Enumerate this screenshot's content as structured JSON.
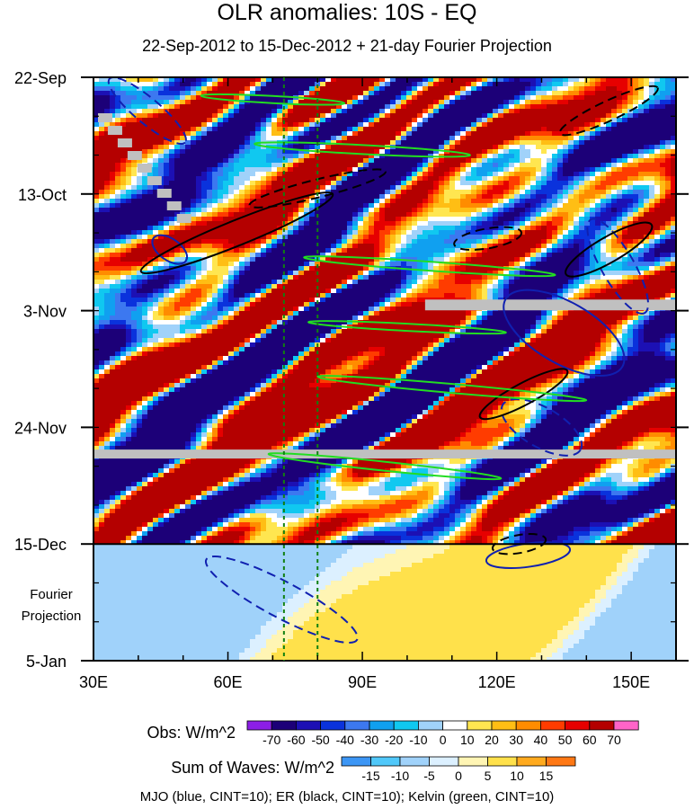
{
  "chart_data": {
    "type": "heatmap",
    "title": "OLR anomalies: 10S - EQ",
    "subtitle": "22-Sep-2012 to 15-Dec-2012 + 21-day Fourier Projection",
    "x_ticks": [
      {
        "value": 30,
        "label": "30E"
      },
      {
        "value": 60,
        "label": "60E"
      },
      {
        "value": 90,
        "label": "90E"
      },
      {
        "value": 120,
        "label": "120E"
      },
      {
        "value": 150,
        "label": "150E"
      }
    ],
    "xlim": [
      30,
      160
    ],
    "y_ticks": [
      {
        "value": "2012-09-22",
        "label": "22-Sep"
      },
      {
        "value": "2012-10-13",
        "label": "13-Oct"
      },
      {
        "value": "2012-11-03",
        "label": "3-Nov"
      },
      {
        "value": "2012-11-24",
        "label": "24-Nov"
      },
      {
        "value": "2012-12-15",
        "label": "15-Dec"
      },
      {
        "value": "2013-01-05",
        "label": "5-Jan"
      }
    ],
    "ylim": [
      "2012-09-22",
      "2013-01-05"
    ],
    "y_reversed": true,
    "projection_start": "2012-12-15",
    "projection_label": [
      "Fourier",
      "Projection"
    ],
    "reference_lines_lon": [
      72.5,
      80
    ],
    "colorbars": [
      {
        "title": "Obs: W/m^2",
        "levels": [
          -70,
          -60,
          -50,
          -40,
          -30,
          -20,
          -10,
          0,
          10,
          20,
          30,
          40,
          50,
          60,
          70
        ],
        "colors": [
          "#8c1ee6",
          "#1c0078",
          "#1c10b4",
          "#0a32dc",
          "#3c78f0",
          "#10a0f0",
          "#10c8f0",
          "#a0d2fa",
          "#ffffff",
          "#ffe650",
          "#ffbe14",
          "#ff8c00",
          "#ff3c00",
          "#e60000",
          "#b40000",
          "#ff64c8"
        ]
      },
      {
        "title": "Sum of Waves: W/m^2",
        "levels": [
          -15,
          -10,
          -5,
          0,
          5,
          10,
          15
        ],
        "colors": [
          "#3c96f5",
          "#50c8fa",
          "#a0d2fa",
          "#dcf0ff",
          "#fff5b4",
          "#ffe14b",
          "#ffaa1e",
          "#ff7814"
        ]
      }
    ],
    "contour_legend": "MJO (blue, CINT=10); ER (black, CINT=10); Kelvin (green, CINT=10)"
  }
}
